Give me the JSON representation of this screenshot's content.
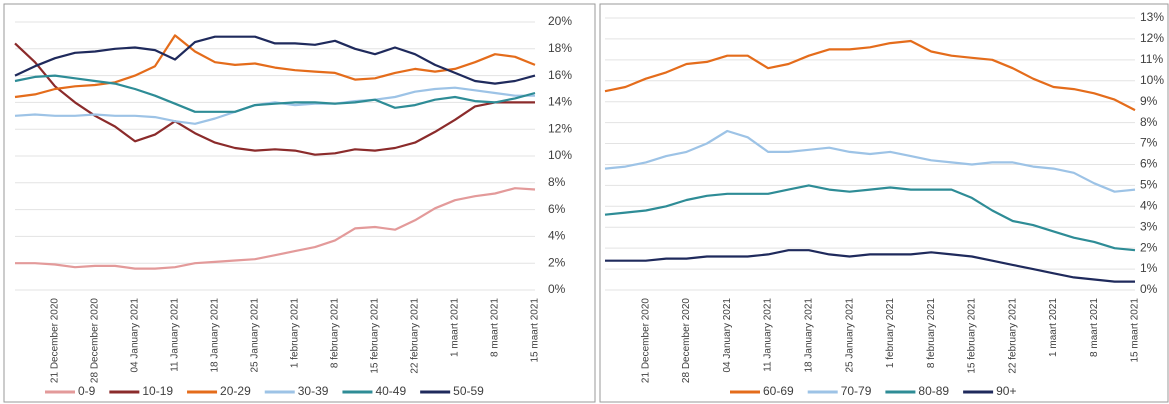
{
  "chart_data": [
    {
      "type": "line",
      "categories": [
        null,
        null,
        "21 December 2020",
        null,
        "28 December 2020",
        null,
        "04 January 2021",
        null,
        "11 January 2021",
        null,
        "18 January 2021",
        null,
        "25 January 2021",
        null,
        "1 february 2021",
        null,
        "8 february 2021",
        null,
        "15 february 2021",
        null,
        "22 february 2021",
        null,
        "1 maart 2021",
        null,
        "8 maart 2021",
        null,
        "15 maart 2021"
      ],
      "ylim": [
        0,
        20
      ],
      "yticks": [
        {
          "value": 0,
          "label": "0%"
        },
        {
          "value": 2,
          "label": "2%"
        },
        {
          "value": 4,
          "label": "4%"
        },
        {
          "value": 6,
          "label": "6%"
        },
        {
          "value": 8,
          "label": "8%"
        },
        {
          "value": 10,
          "label": "10%"
        },
        {
          "value": 12,
          "label": "12%"
        },
        {
          "value": 14,
          "label": "14%"
        },
        {
          "value": 16,
          "label": "16%"
        },
        {
          "value": 18,
          "label": "18%"
        },
        {
          "value": 20,
          "label": "20%"
        }
      ],
      "grid": true,
      "legend": "bottom",
      "series": [
        {
          "name": "0-9",
          "color": "#e39a9a",
          "values": [
            2.0,
            2.0,
            1.9,
            1.7,
            1.8,
            1.8,
            1.6,
            1.6,
            1.7,
            2.0,
            2.1,
            2.2,
            2.3,
            2.6,
            2.9,
            3.2,
            3.7,
            4.6,
            4.7,
            4.5,
            5.2,
            6.1,
            6.7,
            7.0,
            7.2,
            7.6,
            7.5
          ]
        },
        {
          "name": "10-19",
          "color": "#8b2b2b",
          "values": [
            18.4,
            17.0,
            15.2,
            14.0,
            13.0,
            12.2,
            11.1,
            11.6,
            12.6,
            11.7,
            11.0,
            10.6,
            10.4,
            10.5,
            10.4,
            10.1,
            10.2,
            10.5,
            10.4,
            10.6,
            11.0,
            11.8,
            12.7,
            13.7,
            14.0,
            14.0,
            14.0
          ]
        },
        {
          "name": "20-29",
          "color": "#e46c1b",
          "values": [
            14.4,
            14.6,
            15.0,
            15.2,
            15.3,
            15.5,
            16.0,
            16.7,
            19.0,
            17.8,
            17.0,
            16.8,
            16.9,
            16.6,
            16.4,
            16.3,
            16.2,
            15.7,
            15.8,
            16.2,
            16.5,
            16.3,
            16.5,
            17.0,
            17.6,
            17.4,
            16.8
          ]
        },
        {
          "name": "30-39",
          "color": "#9dc3e6",
          "values": [
            13.0,
            13.1,
            13.0,
            13.0,
            13.1,
            13.0,
            13.0,
            12.9,
            12.6,
            12.4,
            12.8,
            13.3,
            13.8,
            14.0,
            13.8,
            13.9,
            13.9,
            14.1,
            14.2,
            14.4,
            14.8,
            15.0,
            15.1,
            14.9,
            14.7,
            14.5,
            14.5
          ]
        },
        {
          "name": "40-49",
          "color": "#2e8c96",
          "values": [
            15.6,
            15.9,
            16.0,
            15.8,
            15.6,
            15.4,
            15.0,
            14.5,
            13.9,
            13.3,
            13.3,
            13.3,
            13.8,
            13.9,
            14.0,
            14.0,
            13.9,
            14.0,
            14.2,
            13.6,
            13.8,
            14.2,
            14.4,
            14.1,
            14.0,
            14.3,
            14.7
          ]
        },
        {
          "name": "50-59",
          "color": "#1f2a5c",
          "values": [
            16.0,
            16.7,
            17.3,
            17.7,
            17.8,
            18.0,
            18.1,
            17.9,
            17.2,
            18.5,
            18.9,
            18.9,
            18.9,
            18.4,
            18.4,
            18.3,
            18.6,
            18.0,
            17.6,
            18.1,
            17.6,
            16.8,
            16.2,
            15.6,
            15.4,
            15.6,
            16.0
          ]
        }
      ]
    },
    {
      "type": "line",
      "categories": [
        null,
        null,
        "21 December 2020",
        null,
        "28 December 2020",
        null,
        "04 January 2021",
        null,
        "11 January 2021",
        null,
        "18 January 2021",
        null,
        "25 January 2021",
        null,
        "1 february 2021",
        null,
        "8 february 2021",
        null,
        "15 february 2021",
        null,
        "22 february 2021",
        null,
        "1 maart 2021",
        null,
        "8 maart 2021",
        null,
        "15 maart 2021"
      ],
      "ylim": [
        0,
        13
      ],
      "yticks": [
        {
          "value": 0,
          "label": "0%"
        },
        {
          "value": 1,
          "label": "1%"
        },
        {
          "value": 2,
          "label": "2%"
        },
        {
          "value": 3,
          "label": "3%"
        },
        {
          "value": 4,
          "label": "4%"
        },
        {
          "value": 5,
          "label": "5%"
        },
        {
          "value": 6,
          "label": "6%"
        },
        {
          "value": 7,
          "label": "7%"
        },
        {
          "value": 8,
          "label": "8%"
        },
        {
          "value": 9,
          "label": "9%"
        },
        {
          "value": 10,
          "label": "10%"
        },
        {
          "value": 11,
          "label": "11%"
        },
        {
          "value": 12,
          "label": "12%"
        },
        {
          "value": 13,
          "label": "13%"
        }
      ],
      "grid": true,
      "legend": "bottom",
      "series": [
        {
          "name": "60-69",
          "color": "#e46c1b",
          "values": [
            9.5,
            9.7,
            10.1,
            10.4,
            10.8,
            10.9,
            11.2,
            11.2,
            10.6,
            10.8,
            11.2,
            11.5,
            11.5,
            11.6,
            11.8,
            11.9,
            11.4,
            11.2,
            11.1,
            11.0,
            10.6,
            10.1,
            9.7,
            9.6,
            9.4,
            9.1,
            8.6
          ]
        },
        {
          "name": "70-79",
          "color": "#9dc3e6",
          "values": [
            5.8,
            5.9,
            6.1,
            6.4,
            6.6,
            7.0,
            7.6,
            7.3,
            6.6,
            6.6,
            6.7,
            6.8,
            6.6,
            6.5,
            6.6,
            6.4,
            6.2,
            6.1,
            6.0,
            6.1,
            6.1,
            5.9,
            5.8,
            5.6,
            5.1,
            4.7,
            4.8
          ]
        },
        {
          "name": "80-89",
          "color": "#2e8c96",
          "values": [
            3.6,
            3.7,
            3.8,
            4.0,
            4.3,
            4.5,
            4.6,
            4.6,
            4.6,
            4.8,
            5.0,
            4.8,
            4.7,
            4.8,
            4.9,
            4.8,
            4.8,
            4.8,
            4.4,
            3.8,
            3.3,
            3.1,
            2.8,
            2.5,
            2.3,
            2.0,
            1.9
          ]
        },
        {
          "name": "90+",
          "color": "#1f2a5c",
          "values": [
            1.4,
            1.4,
            1.4,
            1.5,
            1.5,
            1.6,
            1.6,
            1.6,
            1.7,
            1.9,
            1.9,
            1.7,
            1.6,
            1.7,
            1.7,
            1.7,
            1.8,
            1.7,
            1.6,
            1.4,
            1.2,
            1.0,
            0.8,
            0.6,
            0.5,
            0.4,
            0.4
          ]
        }
      ]
    }
  ]
}
